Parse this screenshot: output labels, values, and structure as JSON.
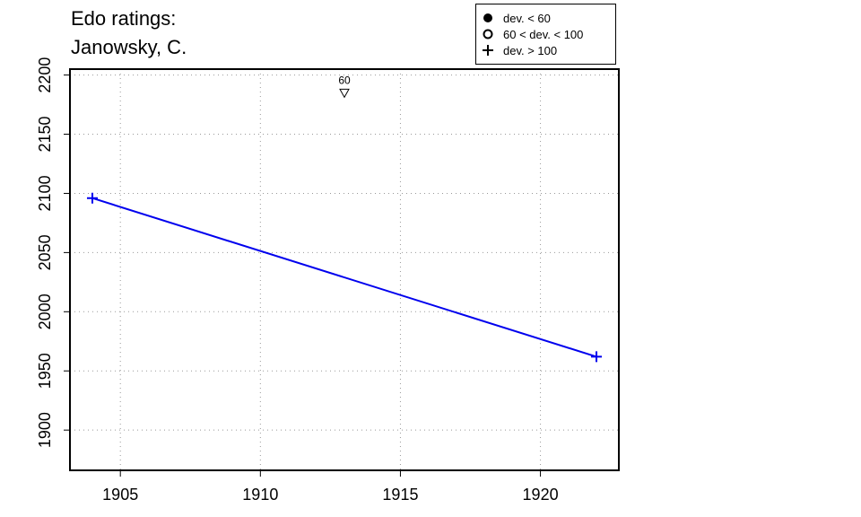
{
  "title_lines": [
    "Edo ratings:",
    "Janowsky, C."
  ],
  "legend": {
    "entries": [
      {
        "symbol": "filled-circle-icon",
        "label": "dev. < 60"
      },
      {
        "symbol": "open-circle-icon",
        "label": "60 < dev. < 100"
      },
      {
        "symbol": "plus-icon",
        "label": "dev. > 100"
      }
    ]
  },
  "chart_data": {
    "type": "line",
    "title": "Edo ratings: Janowsky, C.",
    "xlabel": "",
    "ylabel": "",
    "xlim": [
      1903.2,
      1922.8
    ],
    "ylim": [
      1866,
      2205
    ],
    "x_ticks": [
      1905,
      1910,
      1915,
      1920
    ],
    "y_ticks": [
      1900,
      1950,
      2000,
      2050,
      2100,
      2150,
      2200
    ],
    "grid": true,
    "series": [
      {
        "color": "#0000ee",
        "marker": "plus",
        "points": [
          {
            "x": 1904,
            "y": 2096
          },
          {
            "x": 1922,
            "y": 1962
          }
        ]
      }
    ],
    "annotations": [
      {
        "x": 1913,
        "y": 2185,
        "marker": "down-triangle",
        "label": "60"
      }
    ]
  }
}
